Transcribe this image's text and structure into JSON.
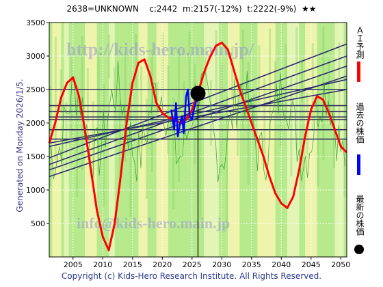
{
  "header": {
    "text": "2638=UNKNOWN    c:2442  m:2157(-12%)  t:2222(-9%)  ★★"
  },
  "side_note": "Generated on Monday 2026/1/5.",
  "footer": "Copyright (c) Kids-Hero Research Institute. All Rights Reserved.",
  "watermarks": {
    "url": "http://kids-hero.main.jp/",
    "mail": "info@kids-hero.main.jp"
  },
  "legend": {
    "ai_forecast": "ＡＩ予測",
    "past_price": "過去の株価",
    "latest_price": "最新の株価",
    "ai_color": "#ff0000",
    "past_color": "#0000ff",
    "latest_color": "#000000"
  },
  "chart_data": {
    "type": "line",
    "xlim": [
      2001,
      2051
    ],
    "ylim": [
      0,
      3500
    ],
    "xticks": [
      2005,
      2010,
      2015,
      2020,
      2025,
      2030,
      2035,
      2040,
      2045,
      2050
    ],
    "yticks": [
      500,
      1000,
      1500,
      2000,
      2500,
      3000,
      3500
    ],
    "grid": true,
    "current_marker": {
      "x": 2026.0,
      "y": 2442
    },
    "horizontal_levels": [
      2500,
      2260,
      2170,
      2090,
      2050,
      1900,
      1760
    ],
    "trend_lines": [
      {
        "x": [
          2001,
          2051
        ],
        "y": [
          1480,
          3180
        ]
      },
      {
        "x": [
          2001,
          2051
        ],
        "y": [
          1380,
          3000
        ]
      },
      {
        "x": [
          2001,
          2051
        ],
        "y": [
          1300,
          2850
        ]
      },
      {
        "x": [
          2001,
          2051
        ],
        "y": [
          1200,
          2700
        ]
      },
      {
        "x": [
          2001,
          2051
        ],
        "y": [
          1650,
          2650
        ]
      },
      {
        "x": [
          2001,
          2051
        ],
        "y": [
          1700,
          2500
        ]
      }
    ],
    "series": [
      {
        "name": "ＡＩ予測",
        "color": "#ff0000",
        "x": [
          2001,
          2002,
          2003,
          2004,
          2005,
          2006,
          2007,
          2008,
          2009,
          2010,
          2011,
          2012,
          2013,
          2014,
          2015,
          2016,
          2017,
          2018,
          2019,
          2020,
          2021,
          2022,
          2023,
          2024,
          2025,
          2026,
          2027,
          2028,
          2029,
          2030,
          2031,
          2032,
          2033,
          2034,
          2035,
          2036,
          2037,
          2038,
          2039,
          2040,
          2041,
          2042,
          2043,
          2044,
          2045,
          2046,
          2047,
          2048,
          2049,
          2050,
          2051
        ],
        "y": [
          1700,
          2000,
          2380,
          2600,
          2680,
          2400,
          1900,
          1300,
          700,
          300,
          100,
          500,
          1200,
          2000,
          2600,
          2900,
          2950,
          2700,
          2300,
          2150,
          2080,
          2050,
          2000,
          2050,
          2200,
          2450,
          2750,
          2980,
          3150,
          3200,
          3100,
          2800,
          2500,
          2250,
          2000,
          1750,
          1500,
          1200,
          950,
          800,
          730,
          900,
          1300,
          1800,
          2200,
          2400,
          2350,
          2150,
          1900,
          1650,
          1560
        ]
      },
      {
        "name": "過去の株価",
        "color": "#0000ff",
        "x": [
          2021.5,
          2022,
          2022.3,
          2022.6,
          2023,
          2023.3,
          2023.6,
          2024,
          2024.3,
          2024.6,
          2025,
          2025.3,
          2025.6,
          2026
        ],
        "y": [
          2200,
          1900,
          2300,
          1800,
          2000,
          2100,
          1850,
          2400,
          2500,
          2100,
          2050,
          2200,
          2300,
          2442
        ]
      }
    ]
  }
}
